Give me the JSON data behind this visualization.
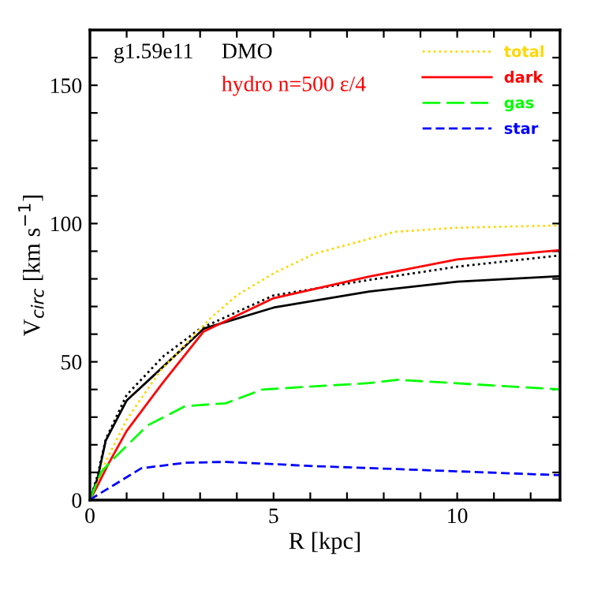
{
  "chart_data": {
    "type": "line",
    "xlabel": "R [kpc]",
    "ylabel": "V$_{circ}$ [km s$^{−1}$]",
    "annotations": [
      "g1.59e11",
      "DMO",
      "hydro n=500 ε/4"
    ],
    "xlim": [
      0,
      12.8
    ],
    "ylim": [
      0,
      170
    ],
    "xticks": [
      0,
      {
        "value": 1,
        "label": null
      },
      {
        "value": 2,
        "label": null
      },
      {
        "value": 3,
        "label": null
      },
      {
        "value": 4,
        "label": null
      },
      5,
      {
        "value": 6,
        "label": null
      },
      {
        "value": 7,
        "label": null
      },
      {
        "value": 8,
        "label": null
      },
      {
        "value": 9,
        "label": null
      },
      10,
      {
        "value": 11,
        "label": null
      },
      {
        "value": 12,
        "label": null
      }
    ],
    "yticks": [
      0,
      {
        "value": 10,
        "label": null
      },
      {
        "value": 20,
        "label": null
      },
      {
        "value": 30,
        "label": null
      },
      {
        "value": 40,
        "label": null
      },
      50,
      {
        "value": 60,
        "label": null
      },
      {
        "value": 70,
        "label": null
      },
      {
        "value": 80,
        "label": null
      },
      {
        "value": 90,
        "label": null
      },
      100,
      {
        "value": 110,
        "label": null
      },
      {
        "value": 120,
        "label": null
      },
      {
        "value": 130,
        "label": null
      },
      {
        "value": 140,
        "label": null
      },
      150,
      {
        "value": 160,
        "label": null
      }
    ],
    "grid": false,
    "legend": "top right",
    "series": [
      {
        "color": "#000000",
        "line_style": "solid",
        "x": [
          0,
          0.21,
          0.43,
          1,
          1.7,
          3.1,
          5,
          7.6,
          10,
          12.8
        ],
        "values": [
          0,
          8,
          21.5,
          36,
          44.6,
          62,
          69.6,
          75.4,
          79,
          81
        ]
      },
      {
        "color": "#000000",
        "line_style": "dotted",
        "x": [
          0,
          0.21,
          0.43,
          1,
          2,
          3,
          5,
          7.6,
          10,
          12.8
        ],
        "values": [
          0,
          9,
          22,
          38,
          52,
          62,
          74,
          79.6,
          84.4,
          88.5
        ]
      },
      {
        "name": "total",
        "color": "#ffd700",
        "line_style": "dotted",
        "x": [
          0,
          0.2,
          0.43,
          1,
          1.9,
          3.3,
          4,
          5,
          6.1,
          8.3,
          10,
          12.8
        ],
        "values": [
          0,
          6,
          14,
          29,
          46.5,
          66,
          74,
          82,
          89,
          97,
          98.5,
          99.3
        ]
      },
      {
        "name": "dark",
        "color": "#ff0000",
        "line_style": "solid",
        "x": [
          0,
          0.2,
          0.5,
          1,
          2,
          3.1,
          5,
          7.6,
          10,
          12.8
        ],
        "values": [
          0,
          5,
          13,
          25,
          42.7,
          61,
          73,
          80.8,
          87,
          90.4
        ]
      },
      {
        "name": "gas",
        "color": "#00ff00",
        "line_style": "dashed",
        "x": [
          0,
          0.3,
          0.57,
          1.57,
          2.6,
          3.7,
          4.7,
          7.6,
          8.4,
          12.8
        ],
        "values": [
          0,
          10,
          14,
          27,
          34,
          35,
          40,
          42.3,
          43.5,
          40
        ]
      },
      {
        "name": "star",
        "color": "#0000ff",
        "line_style": "dashed",
        "x": [
          0,
          0.14,
          1.4,
          2.6,
          3.7,
          6.1,
          10,
          12.8
        ],
        "values": [
          0,
          1.3,
          11.5,
          13.5,
          13.8,
          12.3,
          10.4,
          9
        ]
      }
    ]
  }
}
